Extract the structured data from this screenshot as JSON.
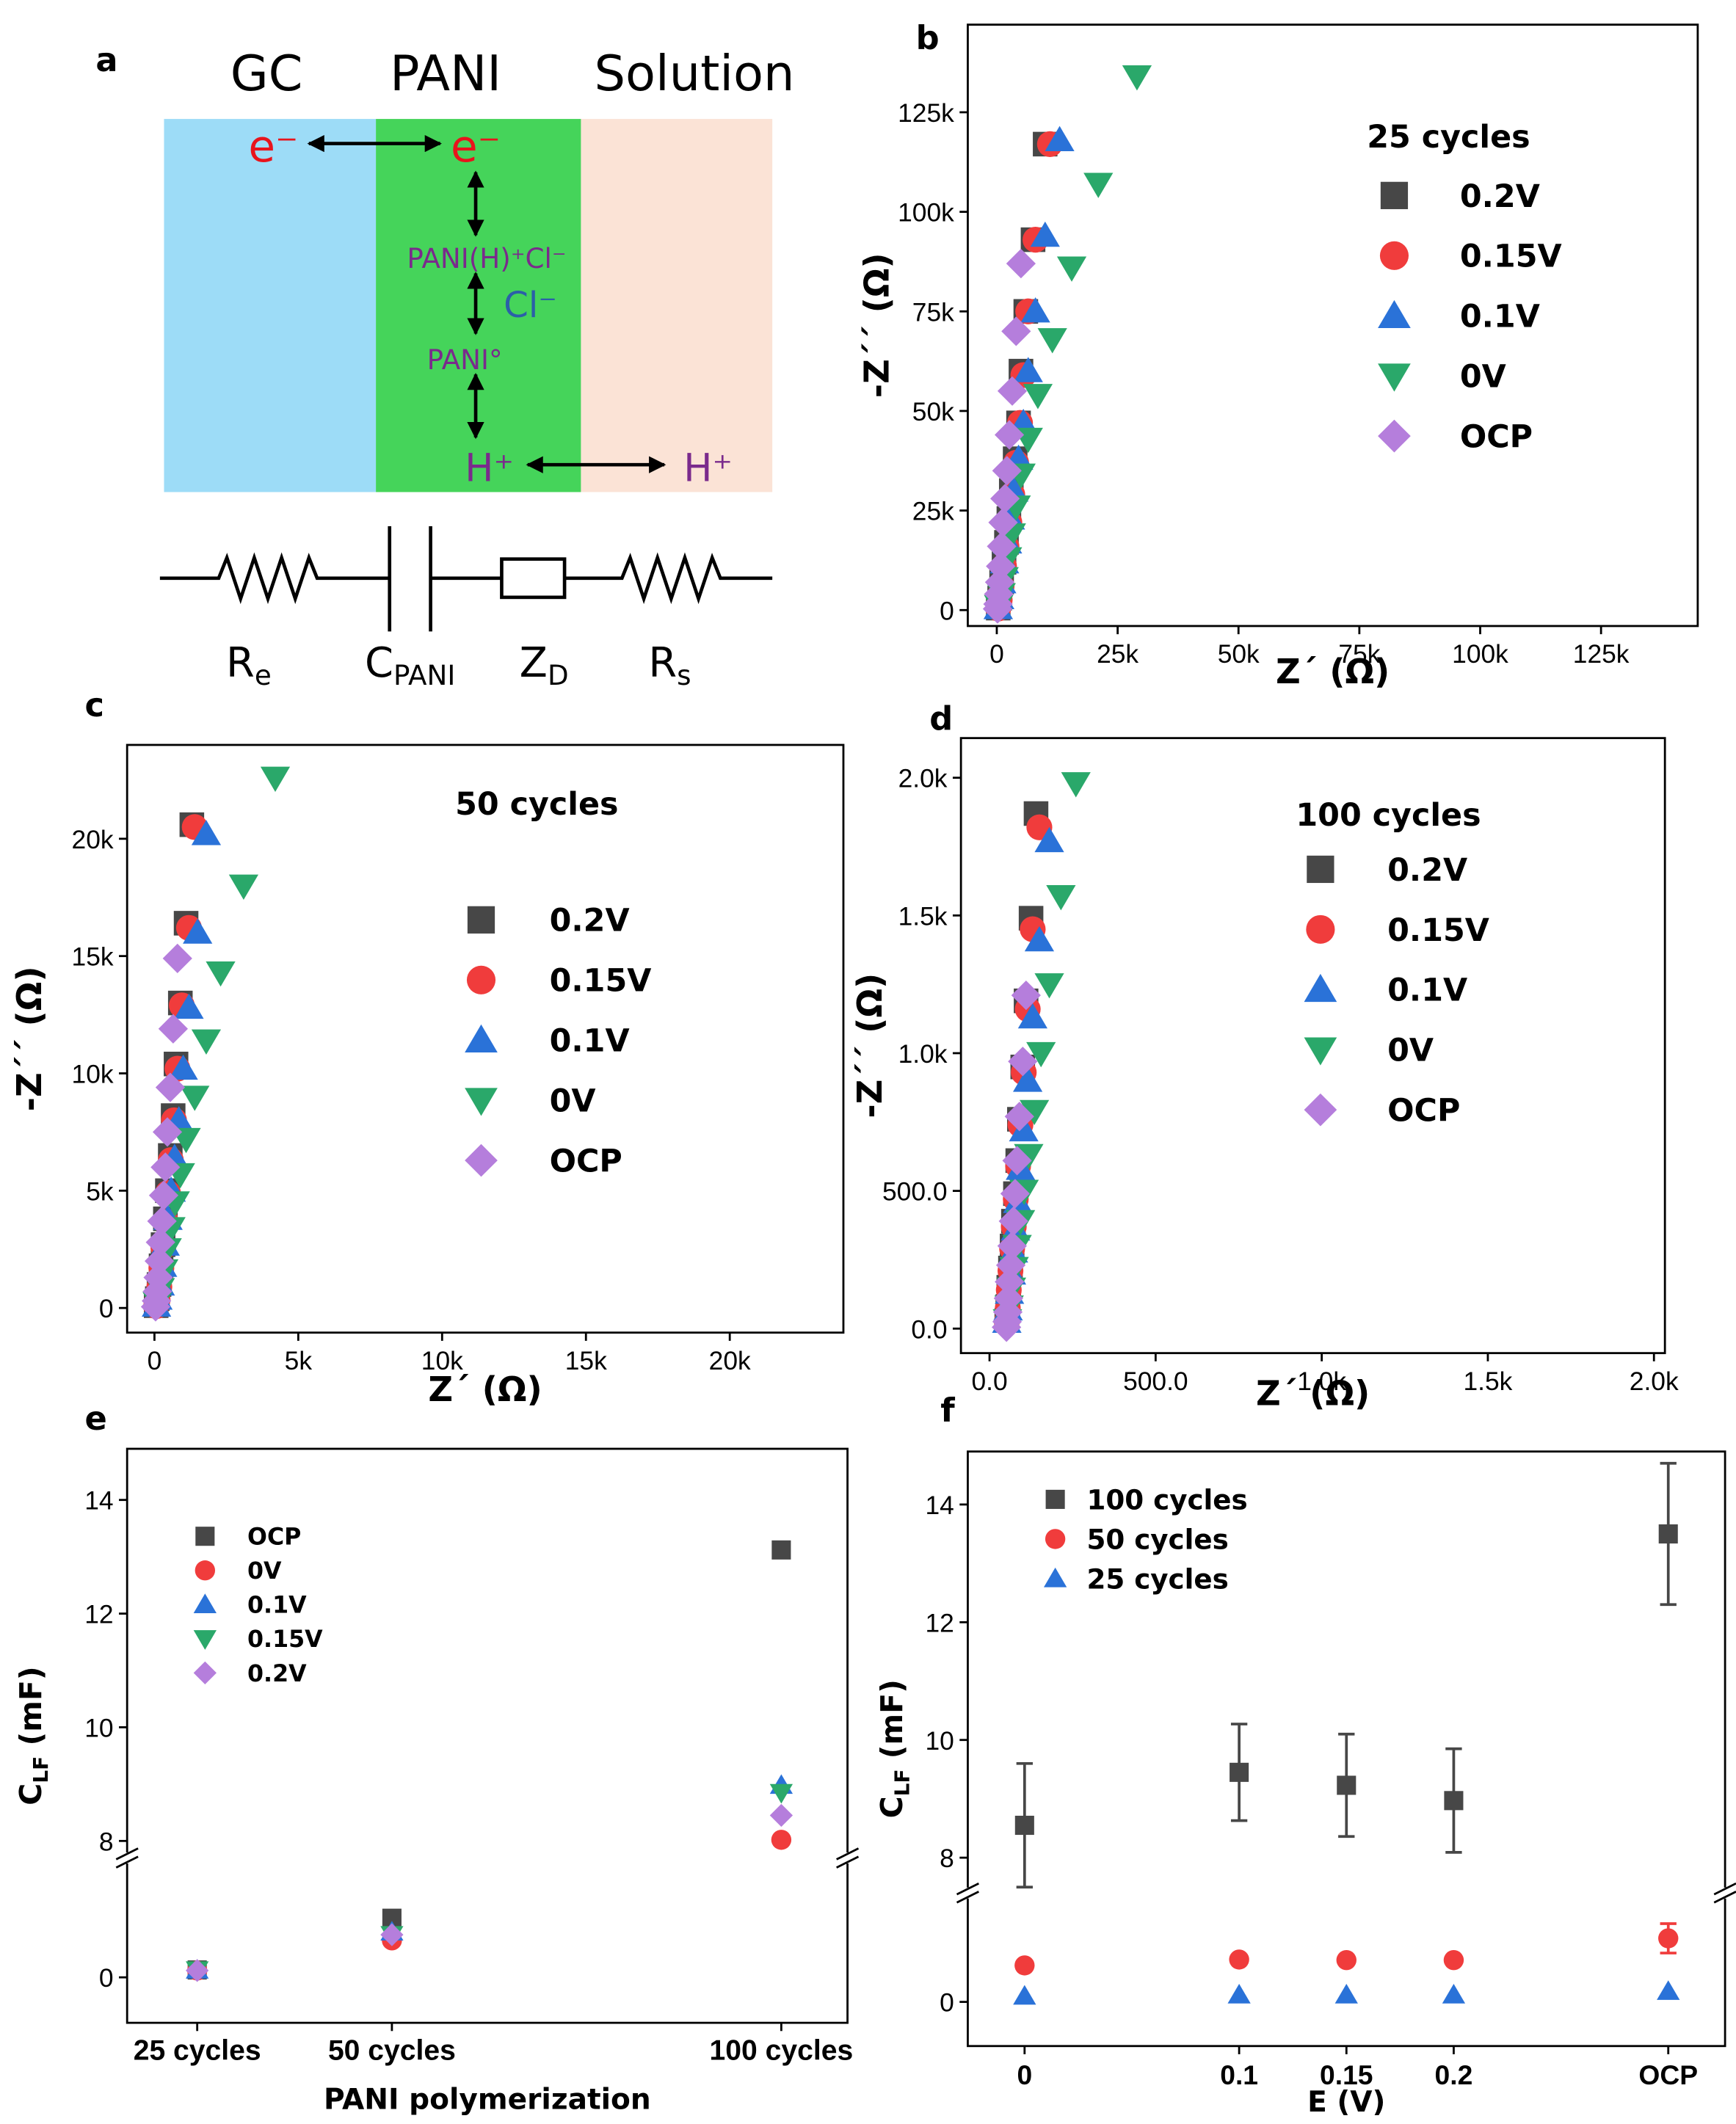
{
  "panel_labels": [
    "a",
    "b",
    "c",
    "d",
    "e",
    "f"
  ],
  "diagram": {
    "regions": [
      "GC",
      "PANI",
      "Solution"
    ],
    "species": {
      "e_gc": "e⁻",
      "e_pani": "e⁻",
      "pani_h_cl": "PANI(H)⁺Cl⁻",
      "cl": "Cl⁻",
      "pani0": "PANI°",
      "h_pani": "H⁺",
      "h_sol": "H⁺"
    },
    "circuit": [
      {
        "main": "R",
        "sub": "e"
      },
      {
        "main": "C",
        "sub": "PANI"
      },
      {
        "main": "Z",
        "sub": "D"
      },
      {
        "main": "R",
        "sub": "s"
      }
    ]
  },
  "chart_data": [
    {
      "type": "scatter",
      "xlabel": "Z´ (Ω)",
      "ylabel": "-Z´´ (Ω)",
      "legend_title": "25 cycles",
      "xlim": [
        -6000,
        145000
      ],
      "ylim": [
        -4000,
        147000
      ],
      "xticks": [
        0,
        {
          "value": 25000,
          "label": "25k"
        },
        {
          "value": 50000,
          "label": "50k"
        },
        {
          "value": 75000,
          "label": "75k"
        },
        {
          "value": 100000,
          "label": "100k"
        },
        {
          "value": 125000,
          "label": "125k"
        }
      ],
      "yticks": [
        0,
        {
          "value": 25000,
          "label": "25k"
        },
        {
          "value": 50000,
          "label": "50k"
        },
        {
          "value": 75000,
          "label": "75k"
        },
        {
          "value": 100000,
          "label": "100k"
        },
        {
          "value": 125000,
          "label": "125k"
        }
      ],
      "series": [
        {
          "name": "0.2V",
          "marker": "square",
          "color": "#474747",
          "x": [
            10000,
            7500,
            6000,
            5000,
            4500,
            3800,
            3000,
            2500,
            2000,
            1500,
            1000,
            600,
            300
          ],
          "values": [
            117000,
            93000,
            75000,
            60000,
            47000,
            38000,
            30000,
            23000,
            17000,
            12000,
            7000,
            3000,
            500
          ]
        },
        {
          "name": "0.15V",
          "marker": "circle",
          "color": "#f03c3c",
          "x": [
            11000,
            8000,
            6500,
            5500,
            4800,
            4000,
            3200,
            2600,
            2000,
            1500,
            1000,
            600,
            300
          ],
          "values": [
            117000,
            93000,
            75000,
            59000,
            47000,
            37000,
            29000,
            22000,
            16000,
            11000,
            6000,
            2500,
            400
          ]
        },
        {
          "name": "0.1V",
          "marker": "triangle",
          "color": "#2a72d8",
          "x": [
            13000,
            10000,
            8000,
            6500,
            5500,
            4500,
            3500,
            2800,
            2200,
            1600,
            1000,
            600,
            300
          ],
          "values": [
            118000,
            94000,
            75000,
            60000,
            47000,
            38000,
            30000,
            23000,
            17000,
            12000,
            7000,
            3000,
            500
          ]
        },
        {
          "name": "0V",
          "marker": "triangle-down",
          "color": "#2aa86a",
          "x": [
            29000,
            21000,
            15500,
            11500,
            8500,
            6500,
            5000,
            4000,
            3000,
            2200,
            1500,
            900,
            400
          ],
          "values": [
            134000,
            107000,
            86000,
            68000,
            54000,
            43000,
            34000,
            26000,
            19000,
            13000,
            8000,
            4000,
            1000
          ]
        },
        {
          "name": "OCP",
          "marker": "diamond",
          "color": "#b57edc",
          "x": [
            5000,
            4000,
            3200,
            2600,
            2100,
            1700,
            1300,
            1000,
            800,
            600,
            400,
            250,
            150
          ],
          "values": [
            87000,
            70000,
            55000,
            44000,
            35000,
            28000,
            22000,
            16000,
            11000,
            7000,
            4000,
            1500,
            300
          ]
        }
      ]
    },
    {
      "type": "scatter",
      "xlabel": "Z´ (Ω)",
      "ylabel": "-Z´´ (Ω)",
      "legend_title": "50 cycles",
      "xlim": [
        -950,
        23950
      ],
      "ylim": [
        -1050,
        24000
      ],
      "xticks": [
        0,
        {
          "value": 5000,
          "label": "5k"
        },
        {
          "value": 10000,
          "label": "10k"
        },
        {
          "value": 15000,
          "label": "15k"
        },
        {
          "value": 20000,
          "label": "20k"
        }
      ],
      "yticks": [
        0,
        {
          "value": 5000,
          "label": "5k"
        },
        {
          "value": 10000,
          "label": "10k"
        },
        {
          "value": 15000,
          "label": "15k"
        },
        {
          "value": 20000,
          "label": "20k"
        }
      ],
      "series": [
        {
          "name": "0.2V",
          "marker": "square",
          "color": "#474747",
          "x": [
            1300,
            1100,
            900,
            750,
            650,
            550,
            450,
            380,
            300,
            230,
            160,
            100,
            60
          ],
          "values": [
            20600,
            16400,
            13000,
            10400,
            8200,
            6500,
            5000,
            3800,
            2700,
            1800,
            1000,
            400,
            100
          ]
        },
        {
          "name": "0.15V",
          "marker": "circle",
          "color": "#f03c3c",
          "x": [
            1400,
            1200,
            950,
            800,
            680,
            570,
            470,
            390,
            310,
            240,
            170,
            110,
            60
          ],
          "values": [
            20500,
            16200,
            12900,
            10200,
            8000,
            6300,
            4900,
            3700,
            2600,
            1700,
            900,
            350,
            80
          ]
        },
        {
          "name": "0.1V",
          "marker": "triangle",
          "color": "#2a72d8",
          "x": [
            1800,
            1500,
            1200,
            1000,
            850,
            700,
            580,
            470,
            370,
            280,
            200,
            120,
            70
          ],
          "values": [
            20200,
            16000,
            12800,
            10200,
            8000,
            6400,
            5000,
            3800,
            2700,
            1800,
            1000,
            400,
            100
          ]
        },
        {
          "name": "0V",
          "marker": "triangle-down",
          "color": "#2aa86a",
          "x": [
            4200,
            3100,
            2300,
            1800,
            1400,
            1100,
            900,
            720,
            570,
            440,
            320,
            200,
            100
          ],
          "values": [
            22600,
            18000,
            14300,
            11400,
            9000,
            7200,
            5700,
            4500,
            3400,
            2500,
            1600,
            800,
            200
          ]
        },
        {
          "name": "OCP",
          "marker": "diamond",
          "color": "#b57edc",
          "x": [
            800,
            650,
            550,
            450,
            380,
            320,
            260,
            210,
            170,
            130,
            100,
            70,
            40
          ],
          "values": [
            14900,
            11900,
            9400,
            7500,
            6000,
            4800,
            3700,
            2800,
            2000,
            1300,
            700,
            300,
            50
          ]
        }
      ]
    },
    {
      "type": "scatter",
      "xlabel": "Z´ (Ω)",
      "ylabel": "-Z´´ (Ω)",
      "legend_title": "100 cycles",
      "xlim": [
        -86,
        2033
      ],
      "ylim": [
        -89,
        2144
      ],
      "xticks": [
        {
          "value": 0,
          "label": "0.0"
        },
        {
          "value": 500,
          "label": "500.0"
        },
        {
          "value": 1000,
          "label": "1.0k"
        },
        {
          "value": 1500,
          "label": "1.5k"
        },
        {
          "value": 2000,
          "label": "2.0k"
        }
      ],
      "yticks": [
        {
          "value": 0,
          "label": "0.0"
        },
        {
          "value": 500,
          "label": "500.0"
        },
        {
          "value": 1000,
          "label": "1.0k"
        },
        {
          "value": 1500,
          "label": "1.5k"
        },
        {
          "value": 2000,
          "label": "2.0k"
        }
      ],
      "series": [
        {
          "name": "0.2V",
          "marker": "square",
          "color": "#474747",
          "x": [
            140,
            125,
            110,
            100,
            90,
            85,
            78,
            72,
            68,
            63,
            58,
            55,
            52
          ],
          "values": [
            1870,
            1490,
            1190,
            950,
            760,
            610,
            490,
            390,
            300,
            220,
            150,
            80,
            30
          ]
        },
        {
          "name": "0.15V",
          "marker": "circle",
          "color": "#f03c3c",
          "x": [
            150,
            130,
            115,
            103,
            93,
            86,
            79,
            73,
            68,
            63,
            58,
            55,
            52
          ],
          "values": [
            1820,
            1450,
            1160,
            930,
            740,
            590,
            470,
            370,
            290,
            210,
            140,
            75,
            25
          ]
        },
        {
          "name": "0.1V",
          "marker": "triangle",
          "color": "#2a72d8",
          "x": [
            180,
            150,
            130,
            115,
            103,
            93,
            85,
            78,
            72,
            66,
            60,
            56,
            52
          ],
          "values": [
            1770,
            1410,
            1130,
            900,
            720,
            580,
            460,
            360,
            280,
            200,
            130,
            70,
            25
          ]
        },
        {
          "name": "0V",
          "marker": "triangle-down",
          "color": "#2aa86a",
          "x": [
            260,
            215,
            180,
            155,
            135,
            118,
            104,
            93,
            83,
            74,
            66,
            59,
            54
          ],
          "values": [
            1980,
            1570,
            1250,
            1000,
            790,
            630,
            500,
            390,
            300,
            220,
            145,
            80,
            30
          ]
        },
        {
          "name": "OCP",
          "marker": "diamond",
          "color": "#b57edc",
          "x": [
            110,
            100,
            90,
            83,
            77,
            72,
            68,
            64,
            60,
            57,
            55,
            53,
            51
          ],
          "values": [
            1210,
            970,
            770,
            610,
            490,
            390,
            300,
            230,
            170,
            110,
            60,
            25,
            5
          ]
        }
      ]
    },
    {
      "type": "scatter",
      "xlabel": "PANI polymerization",
      "ylabel": {
        "main": "C",
        "sub": "LF",
        "rest": " (mF)"
      },
      "x": [
        25,
        50,
        100
      ],
      "xlim": [
        16,
        108.5
      ],
      "ylim": [
        -0.8,
        14.9
      ],
      "ybreak": [
        2.1,
        7.7
      ],
      "xticks": [
        {
          "value": 25,
          "label": "25 cycles"
        },
        {
          "value": 50,
          "label": "50 cycles"
        },
        {
          "value": 100,
          "label": "100 cycles"
        }
      ],
      "yticks": [
        0,
        8,
        10,
        12,
        14
      ],
      "series": [
        {
          "name": "OCP",
          "marker": "square",
          "color": "#474747",
          "values": [
            0.13,
            1.04,
            13.12
          ]
        },
        {
          "name": "0V",
          "marker": "circle",
          "color": "#f03c3c",
          "values": [
            0.12,
            0.65,
            8.02
          ]
        },
        {
          "name": "0.1V",
          "marker": "triangle",
          "color": "#2a72d8",
          "values": [
            0.13,
            0.8,
            8.98
          ]
        },
        {
          "name": "0.15V",
          "marker": "triangle-down",
          "color": "#2aa86a",
          "values": [
            0.13,
            0.75,
            8.85
          ]
        },
        {
          "name": "0.2V",
          "marker": "diamond",
          "color": "#b57edc",
          "values": [
            0.12,
            0.75,
            8.45
          ]
        }
      ]
    },
    {
      "type": "scatter",
      "xlabel": "E (V)",
      "ylabel": {
        "main": "C",
        "sub": "LF",
        "rest": " (mF)"
      },
      "categories": [
        "0",
        "0.1",
        "0.15",
        "0.2",
        "OCP"
      ],
      "ylim": [
        -0.75,
        14.9
      ],
      "ybreak": [
        1.85,
        7.4
      ],
      "yticks": [
        0,
        8,
        10,
        12,
        14
      ],
      "series": [
        {
          "name": "100 cycles",
          "marker": "square",
          "color": "#474747",
          "values": [
            8.55,
            9.45,
            9.23,
            8.97,
            13.5
          ],
          "errors": [
            1.05,
            0.82,
            0.87,
            0.88,
            1.2
          ]
        },
        {
          "name": "50 cycles",
          "marker": "circle",
          "color": "#f03c3c",
          "values": [
            0.62,
            0.72,
            0.71,
            0.71,
            1.08
          ],
          "errors": [
            0.05,
            0.05,
            0.05,
            0.05,
            0.25
          ]
        },
        {
          "name": "25 cycles",
          "marker": "triangle",
          "color": "#2a72d8",
          "values": [
            0.1,
            0.12,
            0.12,
            0.12,
            0.18
          ]
        }
      ]
    }
  ]
}
